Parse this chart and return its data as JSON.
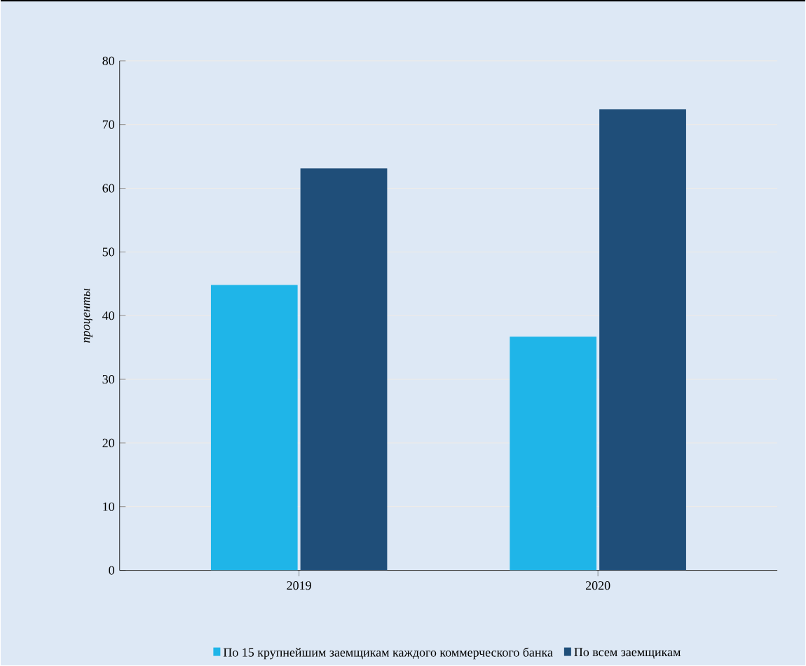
{
  "chart_data": {
    "type": "bar",
    "ylabel": "*проценты*",
    "categories": [
      "2019",
      "2020"
    ],
    "series": [
      {
        "name": "По 15 крупнейшим заемщикам каждого коммерческого банка",
        "color": "#1fb5e8",
        "values": [
          44.8,
          36.7
        ]
      },
      {
        "name": "По всем заемщикам",
        "color": "#1f4e79",
        "values": [
          63.1,
          72.4
        ]
      }
    ],
    "ylim": [
      0,
      80
    ],
    "yticks": [
      0,
      10,
      20,
      30,
      40,
      50,
      60,
      70,
      80
    ],
    "grid": "y",
    "legend": "bottom"
  }
}
